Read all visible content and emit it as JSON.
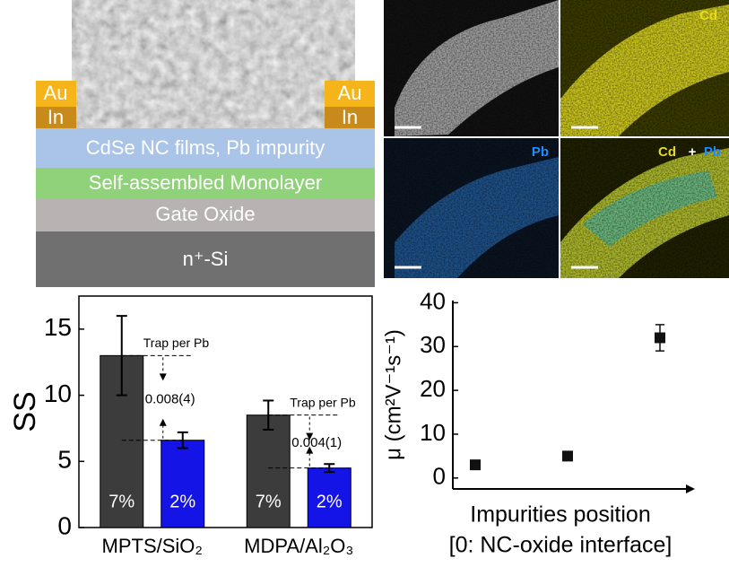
{
  "device": {
    "contacts": [
      "Au",
      "In"
    ],
    "layers": [
      "CdSe NC films, Pb impurity",
      "Self-assembled Monolayer",
      "Gate Oxide",
      "n⁺-Si"
    ]
  },
  "eds": {
    "labels": [
      "Cd",
      "Pb",
      "Cd",
      "+",
      "Pb"
    ]
  },
  "chart_data": [
    {
      "type": "bar",
      "ylabel": "SS",
      "categories": [
        "MPTS/SiO₂",
        "MDPA/Al₂O₃"
      ],
      "series": [
        {
          "color": "#3c3c3c",
          "values": [
            13,
            8.5
          ],
          "errors": [
            3,
            1.1
          ],
          "inner_labels": [
            "7%",
            "7%"
          ]
        },
        {
          "color": "#1414e6",
          "values": [
            6.6,
            4.5
          ],
          "errors": [
            0.6,
            0.3
          ],
          "inner_labels": [
            "2%",
            "2%"
          ]
        }
      ],
      "annotations": [
        "Trap per Pb",
        "0.008(4)",
        "Trap per Pb",
        "0.004(1)"
      ],
      "ylim": [
        0,
        17.5
      ],
      "yticks": [
        0,
        5,
        10,
        15
      ]
    },
    {
      "type": "scatter",
      "ylabel": "μ (cm²V⁻¹s⁻¹)",
      "xlabel": [
        "Impurities position",
        "[0: NC-oxide interface]"
      ],
      "categories": [
        null,
        null,
        null
      ],
      "values": [
        3,
        5,
        32
      ],
      "errors": [
        0.8,
        0.8,
        3
      ],
      "color": "#111111",
      "ylim": [
        -2.5,
        40.5
      ],
      "yticks": [
        0,
        10,
        20,
        30,
        40
      ]
    }
  ]
}
